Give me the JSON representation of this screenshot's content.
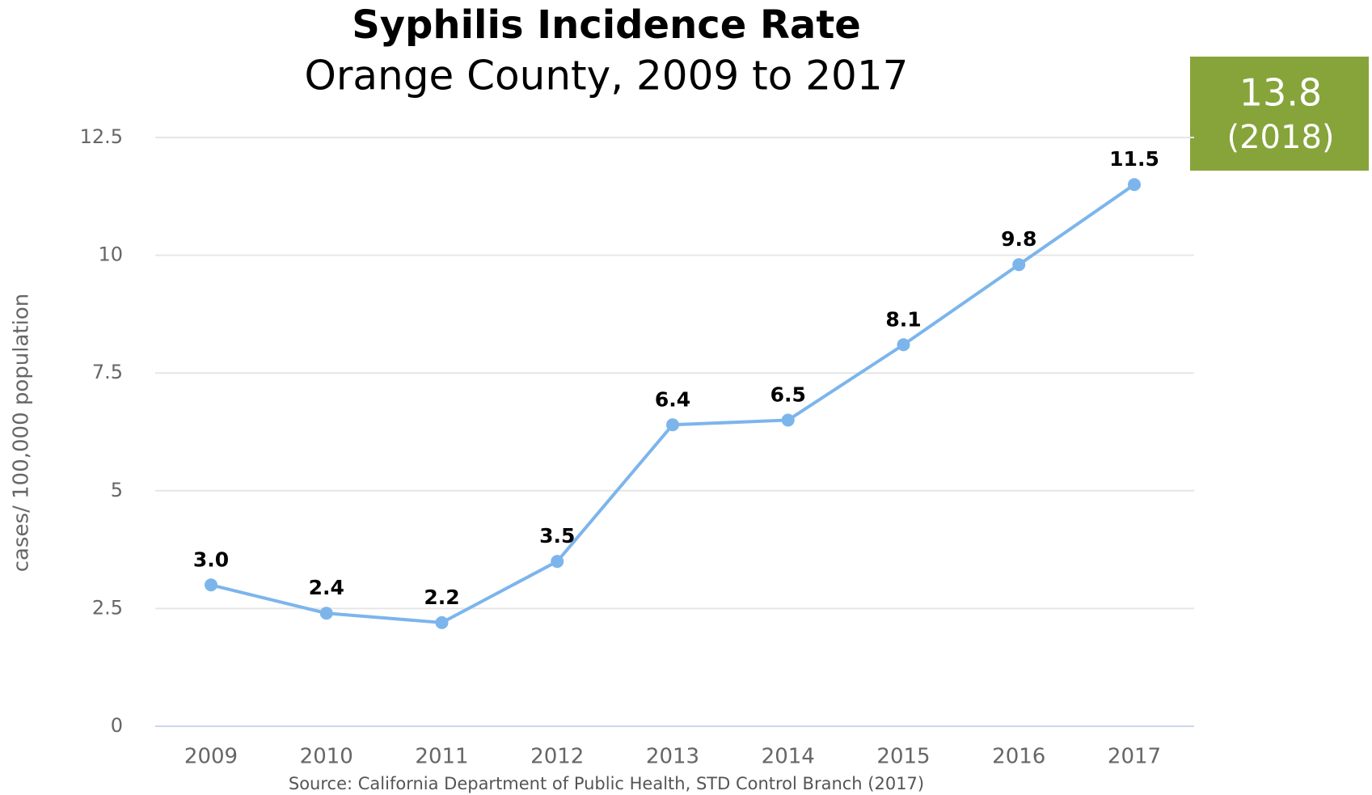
{
  "chart_data": {
    "type": "line",
    "title": "Syphilis Incidence Rate",
    "subtitle": "Orange County, 2009 to 2017",
    "y_label": "cases/ 100,000 population",
    "source": "Source: California Department of Public Health, STD Control Branch (2017)",
    "callout": {
      "value": "13.8",
      "label": "(2018)",
      "color": "#86a43a"
    },
    "categories": [
      "2009",
      "2010",
      "2011",
      "2012",
      "2013",
      "2014",
      "2015",
      "2016",
      "2017"
    ],
    "series": [
      {
        "name": "Orange County",
        "color": "#7cb5ec",
        "values": [
          3.0,
          2.4,
          2.2,
          3.5,
          6.4,
          6.5,
          8.1,
          9.8,
          11.5
        ],
        "value_labels": [
          "3.0",
          "2.4",
          "2.2",
          "3.5",
          "6.4",
          "6.5",
          "8.1",
          "9.8",
          "11.5"
        ]
      }
    ],
    "ylim": [
      0,
      12.5
    ],
    "yticks": [
      0,
      2.5,
      5,
      7.5,
      10,
      12.5
    ],
    "grid": true
  }
}
